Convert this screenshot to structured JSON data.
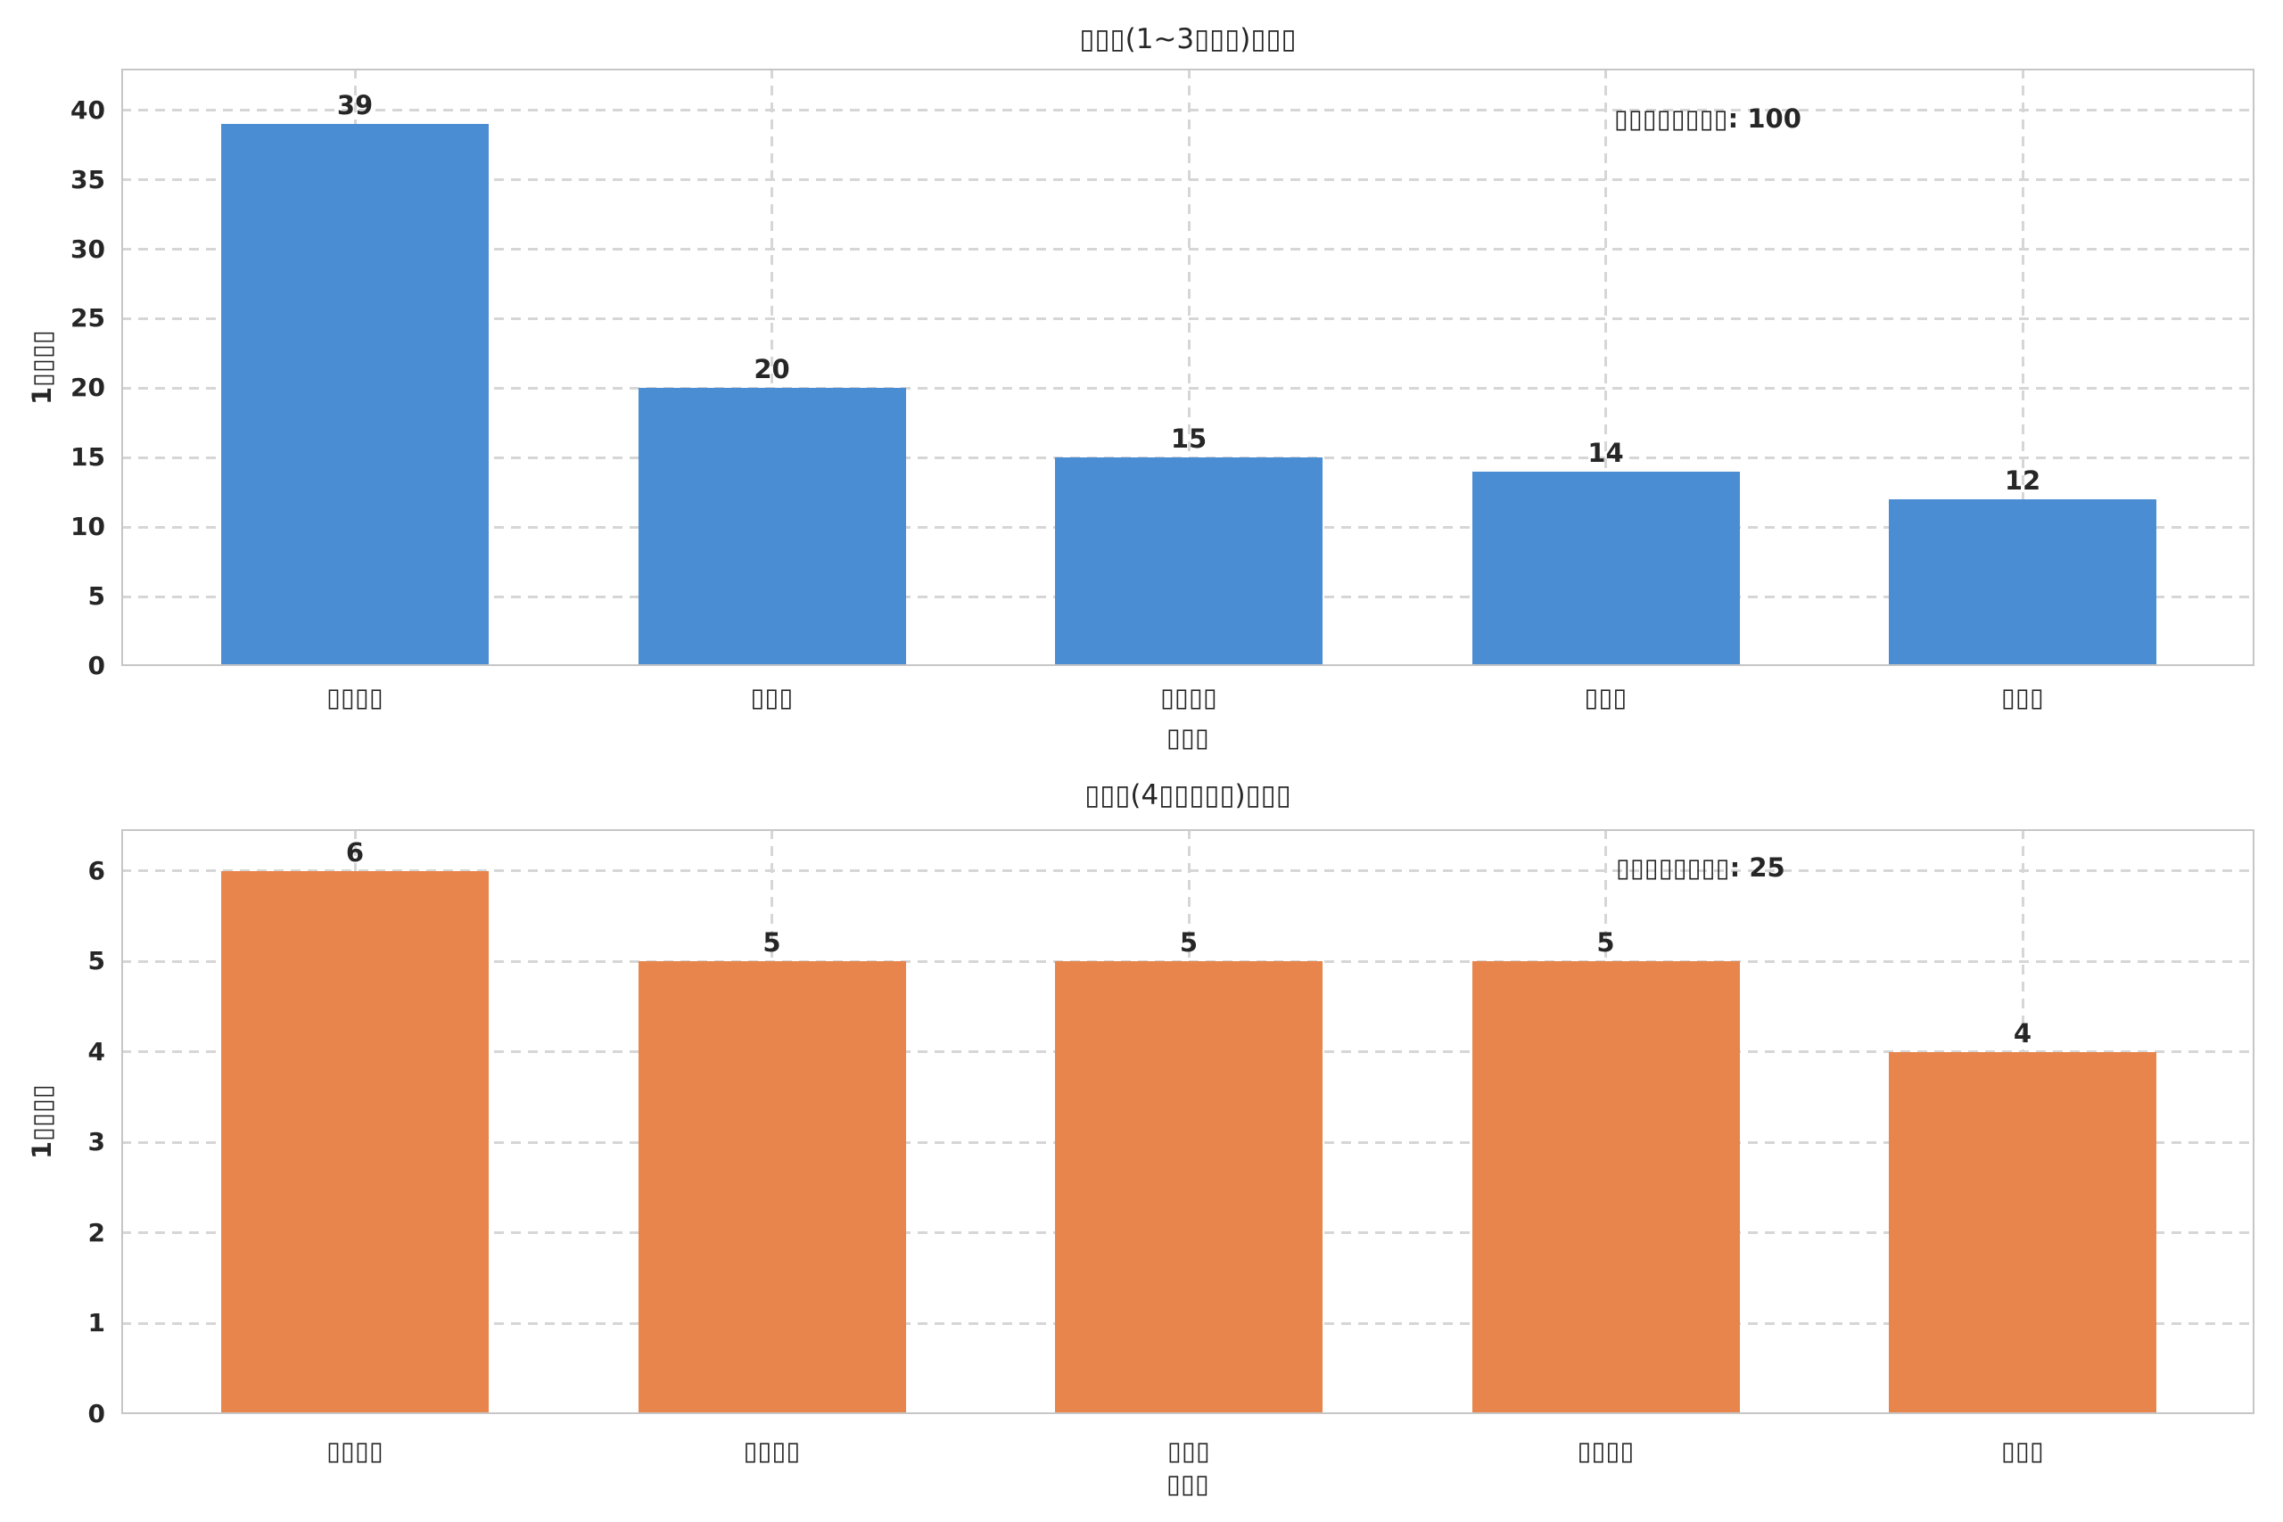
{
  "figure": {
    "background": "#ffffff",
    "spine_color": "#c6c6c6",
    "grid_color": "#d6d6d6",
    "text_color": "#262626"
  },
  "chart_data": [
    {
      "type": "bar",
      "title": "▯▯▯(1~3▯▯▯)▯▯▯",
      "xlabel": "▯▯▯",
      "ylabel": "1▯▯▯▯",
      "categories": [
        "▯▯▯▯",
        "▯▯▯",
        "▯▯▯▯",
        "▯▯▯",
        "▯▯▯"
      ],
      "values": [
        39,
        20,
        15,
        14,
        12
      ],
      "bar_labels": [
        "39",
        "20",
        "15",
        "14",
        "12"
      ],
      "annotation": "▯▯▯▯▯▯▯▯: 100",
      "bar_color": "#4b8dd3",
      "yticks": [
        0,
        5,
        10,
        15,
        20,
        25,
        30,
        35,
        40
      ],
      "ylim": [
        0,
        43
      ],
      "grid": "dashed horizontal and vertical",
      "legend_position": "none"
    },
    {
      "type": "bar",
      "title": "▯▯▯(4▯▯▯▯▯)▯▯▯",
      "xlabel": "▯▯▯",
      "ylabel": "1▯▯▯▯",
      "categories": [
        "▯▯▯▯",
        "▯▯▯▯",
        "▯▯▯",
        "▯▯▯▯",
        "▯▯▯"
      ],
      "values": [
        6,
        5,
        5,
        5,
        4
      ],
      "bar_labels": [
        "6",
        "5",
        "5",
        "5",
        "4"
      ],
      "annotation": "▯▯▯▯▯▯▯▯: 25",
      "bar_color": "#e8854c",
      "yticks": [
        0,
        1,
        2,
        3,
        4,
        5,
        6
      ],
      "ylim": [
        0,
        6.46
      ],
      "grid": "dashed horizontal and vertical",
      "legend_position": "none"
    }
  ]
}
